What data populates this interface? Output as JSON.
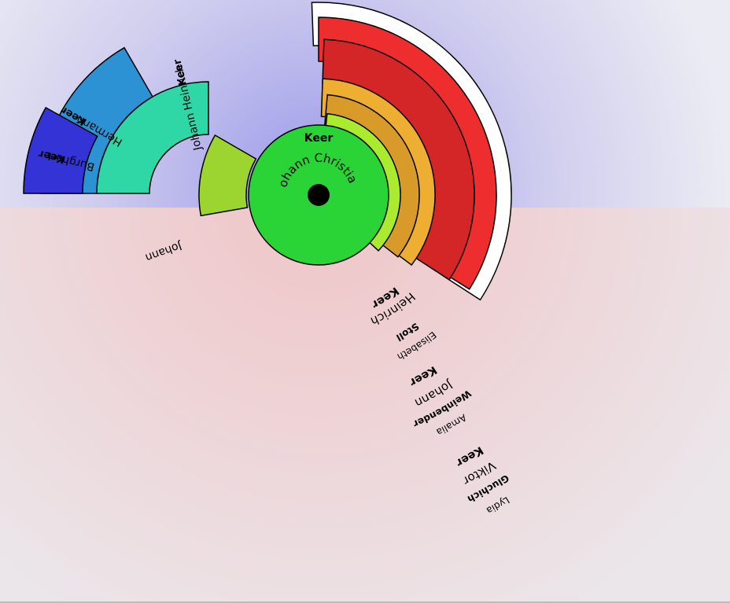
{
  "center_person": {
    "surname": "Keer",
    "given": "Johann Christian",
    "color": "#2ad436"
  },
  "ancestors": [
    {
      "id": "johann-heinrich",
      "surname": "Keer",
      "given": "Johann Heinrich",
      "color": "#2ed7a5"
    },
    {
      "id": "hermann",
      "surname": "Keer",
      "given": "Hermann",
      "color": "#2c92d4"
    },
    {
      "id": "burghart",
      "surname": "Keer",
      "given": "Burghart",
      "color": "#3333d6"
    }
  ],
  "child": {
    "given": "Johann",
    "color": "#9cd52f"
  },
  "descendants": [
    {
      "id": "gen1",
      "surname": "Keer",
      "given": "Heinrich",
      "spouse_surname": "Stoll",
      "spouse_given": "Elisabeth",
      "color": "#9cd52f",
      "spouse_color": "#aaeb30"
    },
    {
      "id": "gen2",
      "surname": "Keer",
      "given": "Johann",
      "spouse_surname": "Weinbender",
      "spouse_given": "Amalia",
      "color": "#d89a28",
      "spouse_color": "#eeae31"
    },
    {
      "id": "gen3",
      "surname": "Keer",
      "given": "Viktor",
      "spouse_surname": "Gluchich",
      "spouse_given": "Lydia",
      "color": "#d42626",
      "spouse_color": "#ee2e2e"
    }
  ],
  "colors": {
    "ancestor_background": "#b8b6ee",
    "descendant_background": "#f0d6d8",
    "family_ring": "#ec9a9a",
    "center_hole": "#000000",
    "outer_band": "#ffffff"
  }
}
